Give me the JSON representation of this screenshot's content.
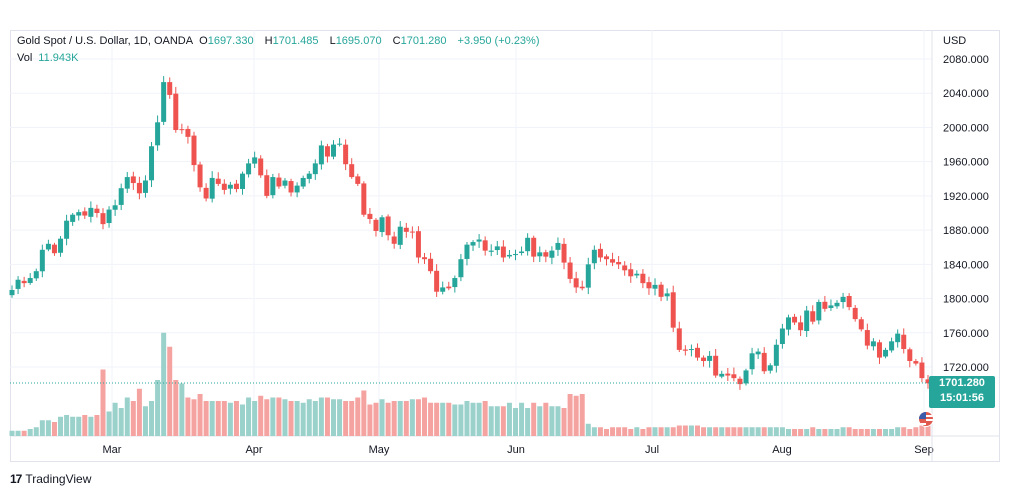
{
  "legend": {
    "symbol": "Gold Spot / U.S. Dollar, 1D, OANDA",
    "o_label": "O",
    "o_value": "1697.330",
    "h_label": "H",
    "h_value": "1701.485",
    "l_label": "L",
    "l_value": "1695.070",
    "c_label": "C",
    "c_value": "1701.280",
    "change": "+3.950 (+0.23%)",
    "vol_label": "Vol",
    "vol_value": "11.943K"
  },
  "price_tag": {
    "price": "1701.280",
    "countdown": "15:01:56"
  },
  "branding": {
    "logo_mark": "17",
    "name": "TradingView"
  },
  "colors": {
    "up": "#26a69a",
    "down": "#ef5350",
    "vol_up": "#9ad1cb",
    "vol_down": "#f5a3a1",
    "grid": "#f0f3fa",
    "text": "#131722"
  },
  "chart_data": {
    "type": "candlestick",
    "currency": "USD",
    "ylim": [
      1680,
      2090
    ],
    "yticks": [
      "2080.000",
      "2040.000",
      "2000.000",
      "1960.000",
      "1920.000",
      "1880.000",
      "1840.000",
      "1800.000",
      "1760.000",
      "1720.000"
    ],
    "xticks": [
      "Mar",
      "Apr",
      "May",
      "Jun",
      "Jul",
      "Aug",
      "Sep"
    ],
    "last_price": 1701.28,
    "closes": [
      1810,
      1822,
      1818,
      1824,
      1832,
      1857,
      1864,
      1853,
      1870,
      1891,
      1898,
      1901,
      1897,
      1906,
      1900,
      1887,
      1904,
      1909,
      1929,
      1942,
      1935,
      1923,
      1938,
      1978,
      2006,
      2053,
      2038,
      1997,
      1998,
      1989,
      1956,
      1930,
      1917,
      1941,
      1934,
      1927,
      1933,
      1928,
      1946,
      1958,
      1965,
      1944,
      1920,
      1942,
      1931,
      1938,
      1924,
      1932,
      1941,
      1946,
      1958,
      1979,
      1966,
      1980,
      1981,
      1957,
      1942,
      1934,
      1898,
      1893,
      1879,
      1895,
      1874,
      1864,
      1884,
      1878,
      1878,
      1848,
      1846,
      1832,
      1808,
      1813,
      1812,
      1824,
      1846,
      1863,
      1866,
      1869,
      1856,
      1856,
      1861,
      1848,
      1851,
      1852,
      1855,
      1871,
      1849,
      1854,
      1849,
      1856,
      1865,
      1842,
      1823,
      1813,
      1812,
      1840,
      1857,
      1848,
      1846,
      1842,
      1840,
      1833,
      1826,
      1829,
      1818,
      1812,
      1816,
      1802,
      1806,
      1766,
      1740,
      1739,
      1741,
      1731,
      1727,
      1733,
      1710,
      1712,
      1710,
      1707,
      1700,
      1716,
      1736,
      1738,
      1715,
      1722,
      1746,
      1765,
      1778,
      1772,
      1763,
      1786,
      1773,
      1796,
      1788,
      1792,
      1795,
      1802,
      1790,
      1776,
      1764,
      1745,
      1750,
      1731,
      1740,
      1750,
      1759,
      1741,
      1727,
      1724,
      1707,
      1701
    ],
    "volumes": [
      3,
      3,
      3,
      4,
      5,
      9,
      9,
      8,
      11,
      12,
      11,
      11,
      12,
      11,
      12,
      38,
      14,
      19,
      16,
      22,
      20,
      27,
      17,
      20,
      32,
      59,
      51,
      32,
      30,
      22,
      21,
      24,
      20,
      20,
      20,
      20,
      19,
      20,
      18,
      22,
      20,
      23,
      21,
      22,
      22,
      21,
      20,
      20,
      19,
      21,
      20,
      22,
      22,
      21,
      21,
      20,
      20,
      22,
      26,
      18,
      19,
      21,
      19,
      20,
      20,
      20,
      21,
      21,
      22,
      19,
      19,
      19,
      19,
      18,
      18,
      20,
      19,
      19,
      20,
      17,
      17,
      17,
      19,
      16,
      19,
      16,
      19,
      17,
      19,
      17,
      17,
      16,
      24,
      23,
      24,
      7,
      5,
      5,
      4,
      5,
      5,
      5,
      4,
      5,
      4,
      5,
      5,
      5,
      5,
      5,
      6,
      6,
      6,
      6,
      5,
      5,
      5,
      5,
      5,
      5,
      5,
      5,
      5,
      5,
      5,
      5,
      5,
      5,
      4,
      4,
      4,
      4,
      5,
      4,
      4,
      4,
      4,
      5,
      5,
      4,
      4,
      4,
      4,
      4,
      4,
      4,
      5,
      5,
      4,
      5,
      6,
      6
    ]
  }
}
